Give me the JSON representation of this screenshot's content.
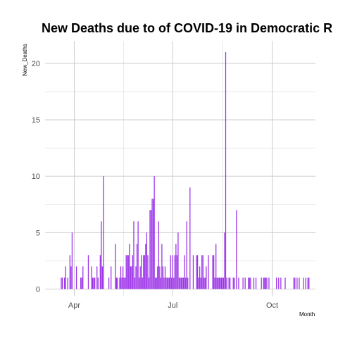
{
  "colors": {
    "bar": "#9B30E8",
    "grid_major": "#c8c8c8",
    "grid_minor": "#dcdcdc"
  },
  "chart_data": {
    "type": "bar",
    "title": "New Deaths due to of COVID-19 in Democratic R",
    "xlabel": "Month",
    "ylabel": "New_Deaths",
    "x_ticks": [
      {
        "label": "Apr",
        "date": "2020-04-01"
      },
      {
        "label": "Jul",
        "date": "2020-07-01"
      },
      {
        "label": "Oct",
        "date": "2020-10-01"
      }
    ],
    "y_ticks": [
      0,
      5,
      10,
      15,
      20
    ],
    "xlim": [
      "2020-03-05",
      "2020-11-10"
    ],
    "ylim": [
      -0.6,
      22
    ],
    "grid": true,
    "x": [
      "2020-03-20",
      "2020-03-21",
      "2020-03-23",
      "2020-03-24",
      "2020-03-26",
      "2020-03-28",
      "2020-03-29",
      "2020-03-30",
      "2020-04-03",
      "2020-04-07",
      "2020-04-08",
      "2020-04-09",
      "2020-04-14",
      "2020-04-17",
      "2020-04-18",
      "2020-04-19",
      "2020-04-20",
      "2020-04-22",
      "2020-04-23",
      "2020-04-25",
      "2020-04-26",
      "2020-04-27",
      "2020-04-28",
      "2020-05-03",
      "2020-05-05",
      "2020-05-09",
      "2020-05-10",
      "2020-05-11",
      "2020-05-13",
      "2020-05-14",
      "2020-05-15",
      "2020-05-16",
      "2020-05-17",
      "2020-05-18",
      "2020-05-19",
      "2020-05-20",
      "2020-05-21",
      "2020-05-22",
      "2020-05-23",
      "2020-05-24",
      "2020-05-25",
      "2020-05-26",
      "2020-05-27",
      "2020-05-28",
      "2020-05-29",
      "2020-05-30",
      "2020-05-31",
      "2020-06-01",
      "2020-06-02",
      "2020-06-03",
      "2020-06-04",
      "2020-06-05",
      "2020-06-06",
      "2020-06-07",
      "2020-06-08",
      "2020-06-09",
      "2020-06-10",
      "2020-06-11",
      "2020-06-12",
      "2020-06-13",
      "2020-06-14",
      "2020-06-15",
      "2020-06-16",
      "2020-06-17",
      "2020-06-18",
      "2020-06-19",
      "2020-06-20",
      "2020-06-21",
      "2020-06-22",
      "2020-06-23",
      "2020-06-24",
      "2020-06-25",
      "2020-06-26",
      "2020-06-27",
      "2020-06-28",
      "2020-06-29",
      "2020-06-30",
      "2020-07-01",
      "2020-07-02",
      "2020-07-03",
      "2020-07-04",
      "2020-07-05",
      "2020-07-06",
      "2020-07-07",
      "2020-07-08",
      "2020-07-09",
      "2020-07-10",
      "2020-07-11",
      "2020-07-12",
      "2020-07-13",
      "2020-07-14",
      "2020-07-15",
      "2020-07-17",
      "2020-07-20",
      "2020-07-23",
      "2020-07-24",
      "2020-07-25",
      "2020-07-26",
      "2020-07-27",
      "2020-07-28",
      "2020-07-29",
      "2020-07-30",
      "2020-07-31",
      "2020-08-01",
      "2020-08-03",
      "2020-08-07",
      "2020-08-08",
      "2020-08-09",
      "2020-08-10",
      "2020-08-11",
      "2020-08-12",
      "2020-08-13",
      "2020-08-14",
      "2020-08-15",
      "2020-08-16",
      "2020-08-17",
      "2020-08-18",
      "2020-08-19",
      "2020-08-20",
      "2020-08-22",
      "2020-08-23",
      "2020-08-26",
      "2020-08-27",
      "2020-08-29",
      "2020-08-31",
      "2020-09-04",
      "2020-09-06",
      "2020-09-09",
      "2020-09-10",
      "2020-09-11",
      "2020-09-14",
      "2020-09-16",
      "2020-09-21",
      "2020-09-23",
      "2020-09-24",
      "2020-09-25",
      "2020-09-26",
      "2020-09-28",
      "2020-10-05",
      "2020-10-07",
      "2020-10-09",
      "2020-10-13",
      "2020-10-21",
      "2020-10-22",
      "2020-10-24",
      "2020-10-26",
      "2020-10-30",
      "2020-11-01",
      "2020-11-03",
      "2020-11-04"
    ],
    "values": [
      1,
      1,
      1,
      2,
      1,
      3,
      2,
      5,
      2,
      1,
      1,
      2,
      3,
      2,
      1,
      1,
      1,
      2,
      1,
      3,
      6,
      2,
      10,
      1,
      2,
      4,
      1,
      1,
      1,
      2,
      1,
      2,
      1,
      1,
      3,
      3,
      3,
      4,
      2,
      2,
      3,
      6,
      1,
      2,
      4,
      6,
      1,
      2,
      3,
      1,
      3,
      3,
      4,
      5,
      3,
      1,
      7,
      7,
      8,
      8,
      10,
      1,
      1,
      2,
      6,
      2,
      1,
      4,
      2,
      1,
      2,
      1,
      1,
      1,
      1,
      3,
      1,
      3,
      1,
      3,
      4,
      3,
      5,
      1,
      1,
      1,
      1,
      1,
      3,
      1,
      6,
      1,
      9,
      3,
      3,
      3,
      1,
      2,
      1,
      3,
      3,
      1,
      1,
      2,
      3,
      3,
      3,
      1,
      4,
      1,
      1,
      1,
      1,
      1,
      1,
      1,
      5,
      21,
      1,
      1,
      1,
      1,
      1,
      7,
      1,
      1,
      1,
      1,
      1,
      1,
      1,
      1,
      1,
      1,
      1,
      1,
      1,
      1,
      1,
      1,
      1,
      1,
      1,
      1,
      1,
      1,
      1,
      1,
      1,
      1
    ]
  }
}
